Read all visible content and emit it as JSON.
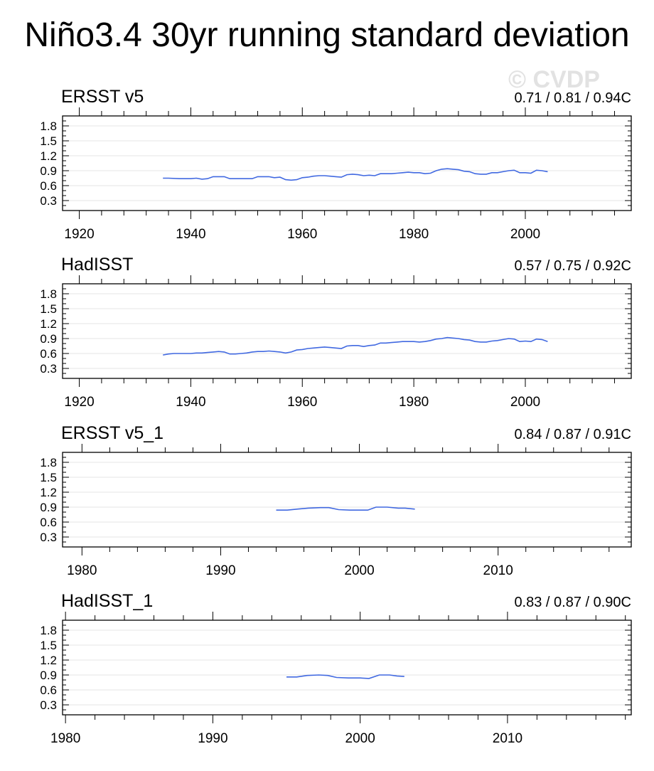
{
  "title": "Niño3.4 30yr running standard deviation",
  "watermark": "© CVDP",
  "colors": {
    "line": "#4169e1",
    "grid": "#e6e6e6",
    "frame": "#000000"
  },
  "chart_data": [
    {
      "type": "line",
      "name": "ERSST v5",
      "stats": "0.71 / 0.81 / 0.94C",
      "xlim": [
        1917,
        2019
      ],
      "ylim": [
        0.1,
        2.0
      ],
      "xticks": [
        1920,
        1940,
        1960,
        1980,
        2000
      ],
      "yticks": [
        0.3,
        0.6,
        0.9,
        1.2,
        1.5,
        1.8
      ],
      "ytick_labels": [
        "0.3",
        "0.6",
        "0.9",
        "1.2",
        "1.5",
        "1.8"
      ],
      "grid": true,
      "x": [
        1935,
        1936,
        1938,
        1940,
        1941,
        1942,
        1943,
        1944,
        1945,
        1946,
        1947,
        1948,
        1949,
        1950,
        1951,
        1952,
        1953,
        1954,
        1955,
        1956,
        1957,
        1958,
        1959,
        1960,
        1961,
        1962,
        1963,
        1964,
        1965,
        1966,
        1967,
        1968,
        1969,
        1970,
        1971,
        1972,
        1973,
        1974,
        1975,
        1976,
        1977,
        1978,
        1979,
        1980,
        1981,
        1982,
        1983,
        1984,
        1985,
        1986,
        1987,
        1988,
        1989,
        1990,
        1991,
        1992,
        1993,
        1994,
        1995,
        1996,
        1997,
        1998,
        1999,
        2000,
        2001,
        2002,
        2003,
        2004
      ],
      "y": [
        0.75,
        0.75,
        0.74,
        0.74,
        0.75,
        0.73,
        0.74,
        0.78,
        0.78,
        0.78,
        0.74,
        0.74,
        0.74,
        0.74,
        0.74,
        0.78,
        0.78,
        0.78,
        0.76,
        0.77,
        0.72,
        0.71,
        0.72,
        0.76,
        0.77,
        0.79,
        0.8,
        0.8,
        0.79,
        0.78,
        0.77,
        0.82,
        0.83,
        0.82,
        0.8,
        0.81,
        0.8,
        0.84,
        0.84,
        0.84,
        0.85,
        0.86,
        0.87,
        0.86,
        0.86,
        0.84,
        0.85,
        0.9,
        0.93,
        0.94,
        0.93,
        0.92,
        0.89,
        0.88,
        0.84,
        0.83,
        0.83,
        0.86,
        0.86,
        0.88,
        0.9,
        0.91,
        0.86,
        0.86,
        0.85,
        0.91,
        0.9,
        0.88
      ]
    },
    {
      "type": "line",
      "name": "HadISST",
      "stats": "0.57 / 0.75 / 0.92C",
      "xlim": [
        1917,
        2019
      ],
      "ylim": [
        0.1,
        2.0
      ],
      "xticks": [
        1920,
        1940,
        1960,
        1980,
        2000
      ],
      "yticks": [
        0.3,
        0.6,
        0.9,
        1.2,
        1.5,
        1.8
      ],
      "ytick_labels": [
        "0.3",
        "0.6",
        "0.9",
        "1.2",
        "1.5",
        "1.8"
      ],
      "grid": true,
      "x": [
        1935,
        1936,
        1937,
        1938,
        1939,
        1940,
        1941,
        1942,
        1943,
        1944,
        1945,
        1946,
        1947,
        1948,
        1949,
        1950,
        1951,
        1952,
        1953,
        1954,
        1955,
        1956,
        1957,
        1958,
        1959,
        1960,
        1961,
        1962,
        1963,
        1964,
        1965,
        1966,
        1967,
        1968,
        1969,
        1970,
        1971,
        1972,
        1973,
        1974,
        1975,
        1976,
        1977,
        1978,
        1979,
        1980,
        1981,
        1982,
        1983,
        1984,
        1985,
        1986,
        1987,
        1988,
        1989,
        1990,
        1991,
        1992,
        1993,
        1994,
        1995,
        1996,
        1997,
        1998,
        1999,
        2000,
        2001,
        2002,
        2003,
        2004
      ],
      "y": [
        0.57,
        0.59,
        0.6,
        0.6,
        0.6,
        0.6,
        0.61,
        0.61,
        0.62,
        0.63,
        0.64,
        0.63,
        0.59,
        0.59,
        0.6,
        0.61,
        0.63,
        0.64,
        0.64,
        0.65,
        0.64,
        0.63,
        0.61,
        0.63,
        0.67,
        0.68,
        0.7,
        0.71,
        0.72,
        0.73,
        0.72,
        0.71,
        0.7,
        0.75,
        0.76,
        0.76,
        0.74,
        0.76,
        0.77,
        0.81,
        0.81,
        0.82,
        0.83,
        0.84,
        0.84,
        0.84,
        0.83,
        0.84,
        0.86,
        0.89,
        0.9,
        0.92,
        0.91,
        0.9,
        0.88,
        0.87,
        0.84,
        0.83,
        0.83,
        0.85,
        0.86,
        0.88,
        0.9,
        0.89,
        0.84,
        0.85,
        0.84,
        0.89,
        0.88,
        0.84
      ]
    },
    {
      "type": "line",
      "name": "ERSST v5_1",
      "stats": "0.84 / 0.87 / 0.91C",
      "xlim": [
        1978.6,
        2019.6
      ],
      "ylim": [
        0.1,
        2.0
      ],
      "xticks": [
        1980,
        1990,
        2000,
        2010
      ],
      "yticks": [
        0.3,
        0.6,
        0.9,
        1.2,
        1.5,
        1.8
      ],
      "ytick_labels": [
        "0.3",
        "0.6",
        "0.9",
        "1.2",
        "1.5",
        "1.8"
      ],
      "grid": true,
      "x": [
        1994,
        1994.8,
        1995.5,
        1996.3,
        1997.2,
        1997.8,
        1998.5,
        1999.3,
        2000.2,
        2000.6,
        2001.2,
        2002,
        2002.8,
        2003.3,
        2004
      ],
      "y": [
        0.84,
        0.84,
        0.86,
        0.88,
        0.89,
        0.89,
        0.85,
        0.84,
        0.84,
        0.84,
        0.9,
        0.9,
        0.88,
        0.88,
        0.86
      ]
    },
    {
      "type": "line",
      "name": "HadISST_1",
      "stats": "0.83 / 0.87 / 0.90C",
      "xlim": [
        1979.8,
        2018.4
      ],
      "ylim": [
        0.1,
        2.0
      ],
      "xticks": [
        1980,
        1990,
        2000,
        2010
      ],
      "yticks": [
        0.3,
        0.6,
        0.9,
        1.2,
        1.5,
        1.8
      ],
      "ytick_labels": [
        "0.3",
        "0.6",
        "0.9",
        "1.2",
        "1.5",
        "1.8"
      ],
      "grid": true,
      "x": [
        1995,
        1995.7,
        1996.4,
        1997.2,
        1997.8,
        1998.4,
        1999.2,
        2000,
        2000.6,
        2001.3,
        2002,
        2002.5,
        2003
      ],
      "y": [
        0.86,
        0.86,
        0.89,
        0.9,
        0.89,
        0.85,
        0.84,
        0.84,
        0.83,
        0.9,
        0.9,
        0.88,
        0.87
      ]
    }
  ]
}
